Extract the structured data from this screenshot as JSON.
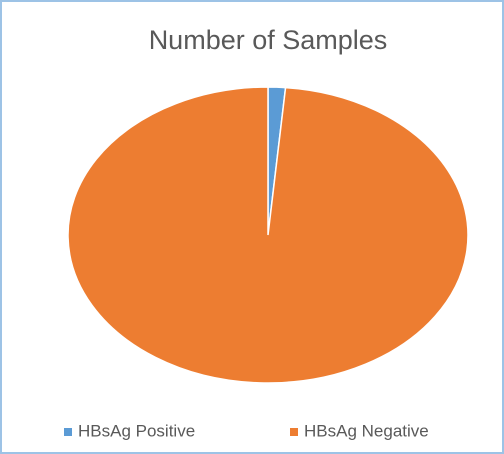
{
  "chart_data": {
    "type": "pie",
    "title": "Number of Samples",
    "categories": [
      "HBsAg Positive",
      "HBsAg Negative"
    ],
    "values": [
      1.4,
      98.6
    ],
    "colors": [
      "#5b9bd5",
      "#ed7d31"
    ],
    "legend": "bottom"
  }
}
